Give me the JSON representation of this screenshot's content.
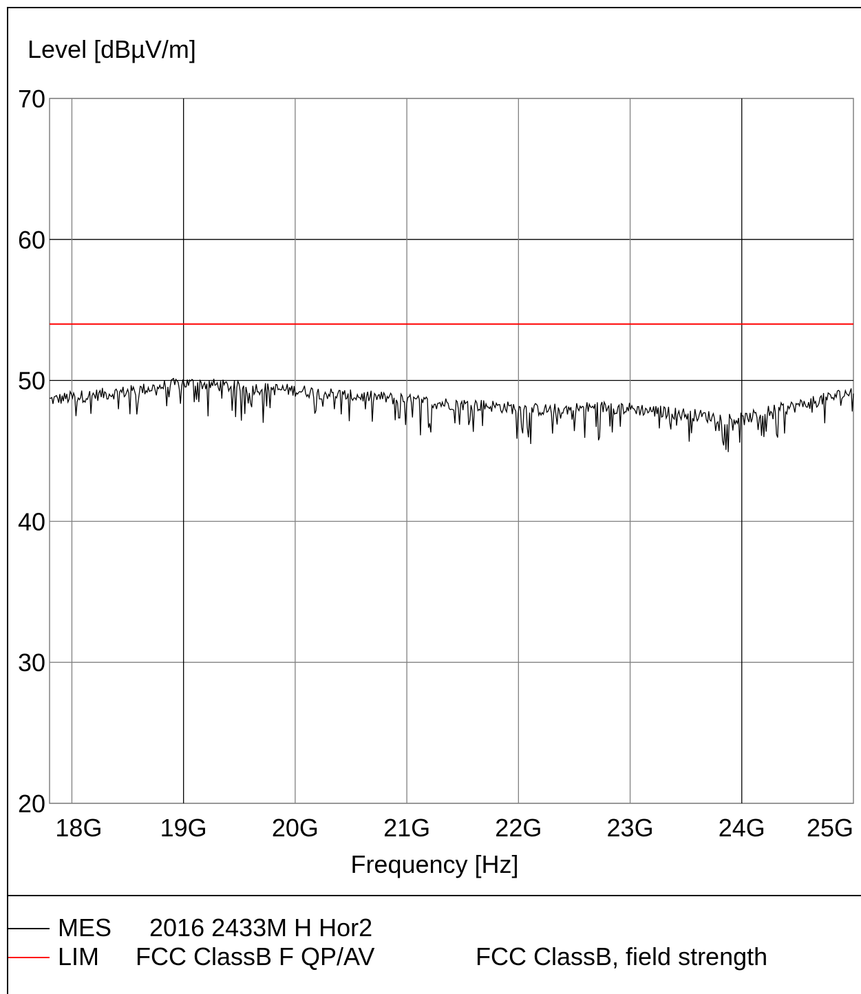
{
  "chart_data": {
    "type": "line",
    "ylabel": "Level [dBµV/m]",
    "xlabel": "Frequency [Hz]",
    "xlim": [
      17800000000.0,
      25000000000.0
    ],
    "ylim": [
      20,
      70
    ],
    "y_ticks": [
      20,
      30,
      40,
      50,
      60,
      70
    ],
    "y_tick_labels": [
      "20",
      "30",
      "40",
      "50",
      "60",
      "70"
    ],
    "x_ticks": [
      18000000000.0,
      19000000000.0,
      20000000000.0,
      21000000000.0,
      22000000000.0,
      23000000000.0,
      24000000000.0,
      25000000000.0
    ],
    "x_tick_labels": [
      "18G",
      "19G",
      "20G",
      "21G",
      "22G",
      "23G",
      "24G",
      "25G"
    ],
    "grid": true,
    "series": [
      {
        "name": "2016 2433M H Hor2",
        "code": "MES",
        "color": "#000000",
        "x": [
          17800000000.0,
          18000000000.0,
          18250000000.0,
          18500000000.0,
          18750000000.0,
          19000000000.0,
          19250000000.0,
          19500000000.0,
          19750000000.0,
          20000000000.0,
          20250000000.0,
          20500000000.0,
          20750000000.0,
          21000000000.0,
          21250000000.0,
          21500000000.0,
          21750000000.0,
          22000000000.0,
          22250000000.0,
          22500000000.0,
          22750000000.0,
          23000000000.0,
          23250000000.0,
          23500000000.0,
          23750000000.0,
          24000000000.0,
          24250000000.0,
          24500000000.0,
          24750000000.0,
          25000000000.0
        ],
        "y": [
          48.6,
          48.8,
          49.0,
          49.2,
          49.5,
          49.8,
          49.7,
          49.5,
          49.4,
          49.3,
          49.1,
          48.9,
          48.8,
          48.6,
          48.4,
          48.3,
          48.2,
          48.0,
          47.9,
          48.0,
          48.1,
          48.0,
          47.8,
          47.6,
          47.4,
          47.2,
          47.8,
          48.2,
          48.7,
          49.2
        ]
      },
      {
        "name": "FCC ClassB F QP/AV",
        "code": "LIM",
        "description": "FCC ClassB, field strength",
        "color": "#ff0000",
        "x": [
          17800000000.0,
          25000000000.0
        ],
        "y": [
          54,
          54
        ]
      }
    ]
  },
  "legend": {
    "mes": {
      "code": "MES",
      "name": "2016 2433M H Hor2",
      "color": "#000000"
    },
    "lim": {
      "code": "LIM",
      "name": "FCC ClassB F QP/AV",
      "description": "FCC ClassB, field strength",
      "color": "#ff0000"
    }
  }
}
